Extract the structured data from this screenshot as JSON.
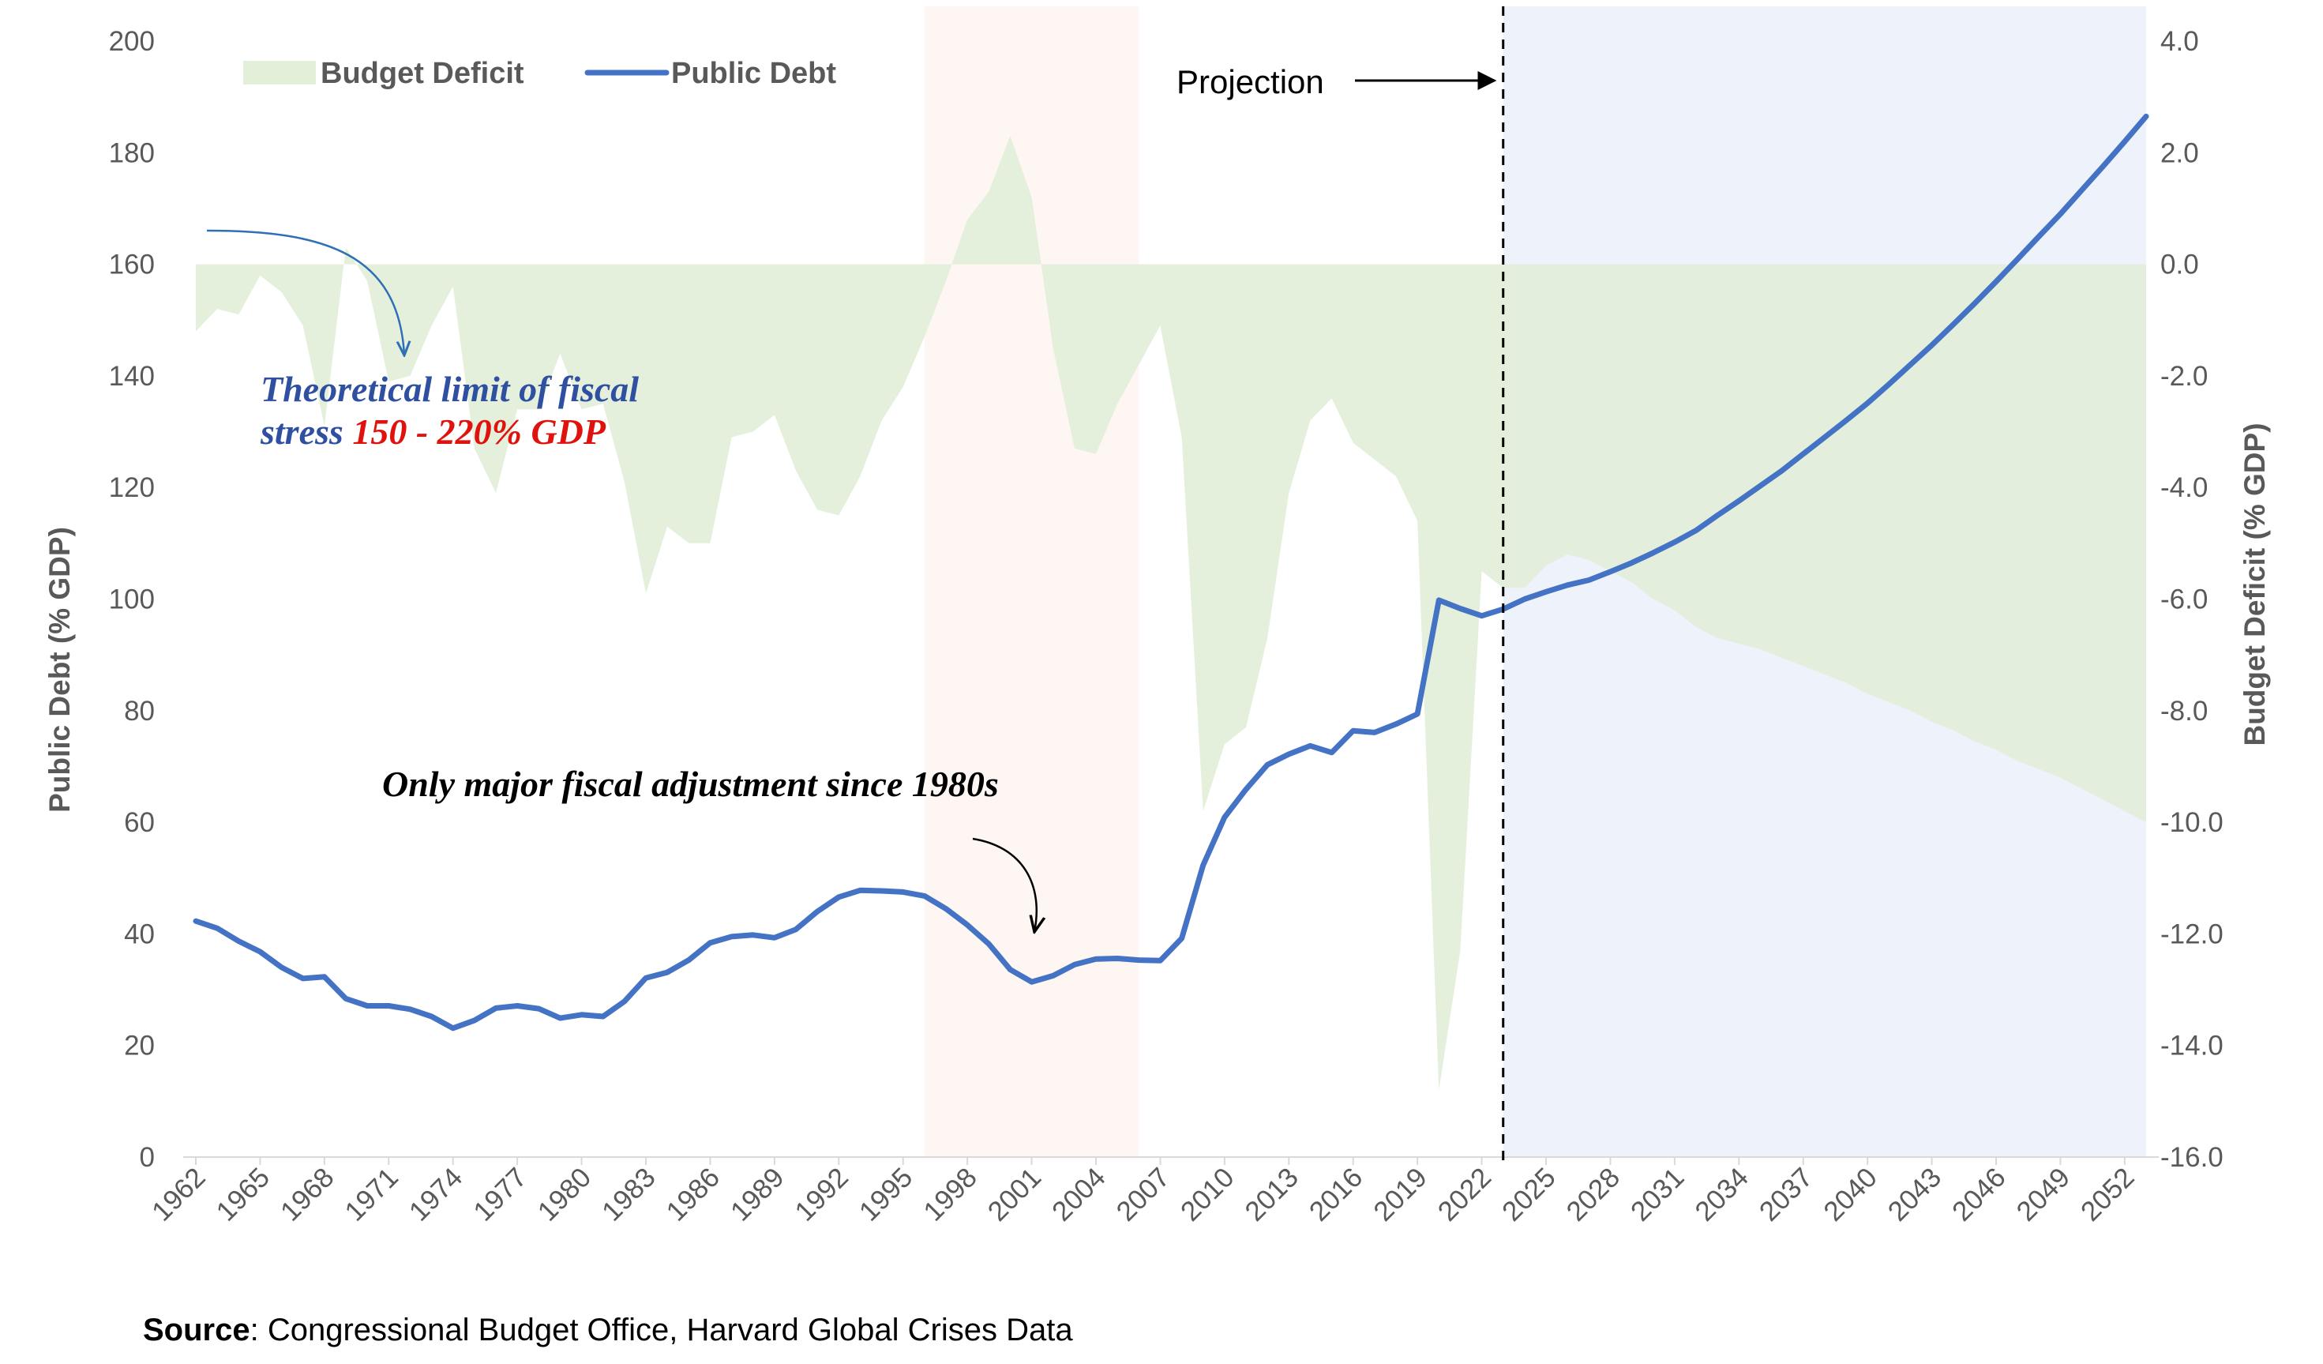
{
  "chart_data": {
    "type": "line",
    "title": "",
    "ylabel_left": "Public Debt (% GDP)",
    "ylabel_right": "Budget Deficit (% GDP)",
    "ylim_left": [
      0,
      200
    ],
    "ylim_right": [
      -16.0,
      4.0
    ],
    "yticks_left": [
      "0",
      "20",
      "40",
      "60",
      "80",
      "100",
      "120",
      "140",
      "160",
      "180",
      "200"
    ],
    "yticks_right": [
      "-16.0",
      "-14.0",
      "-12.0",
      "-10.0",
      "-8.0",
      "-6.0",
      "-4.0",
      "-2.0",
      "0.0",
      "2.0",
      "4.0"
    ],
    "xlim": [
      1962,
      2053
    ],
    "xticks": [
      "1962",
      "1965",
      "1968",
      "1971",
      "1974",
      "1977",
      "1980",
      "1983",
      "1986",
      "1989",
      "1992",
      "1995",
      "1998",
      "2001",
      "2004",
      "2007",
      "2010",
      "2013",
      "2016",
      "2019",
      "2022",
      "2025",
      "2028",
      "2031",
      "2034",
      "2037",
      "2040",
      "2043",
      "2046",
      "2049",
      "2052"
    ],
    "legend": {
      "position": "top-left",
      "entries": [
        "Budget Deficit",
        "Public Debt"
      ]
    },
    "colors": {
      "deficit_fill": "#E2EFD9",
      "debt_line": "#4472C4",
      "highlight_band": "#FDF6F2",
      "projection_band": "#EEF3FB"
    },
    "highlight_band_years": [
      1996,
      2006
    ],
    "projection_start_year": 2023,
    "series": [
      {
        "name": "Public Debt",
        "axis": "left",
        "style": "line",
        "points": [
          [
            1962,
            42.3
          ],
          [
            1963,
            41.0
          ],
          [
            1964,
            38.7
          ],
          [
            1965,
            36.8
          ],
          [
            1966,
            34.0
          ],
          [
            1967,
            32.0
          ],
          [
            1968,
            32.3
          ],
          [
            1969,
            28.4
          ],
          [
            1970,
            27.1
          ],
          [
            1971,
            27.1
          ],
          [
            1972,
            26.5
          ],
          [
            1973,
            25.2
          ],
          [
            1974,
            23.1
          ],
          [
            1975,
            24.5
          ],
          [
            1976,
            26.7
          ],
          [
            1977,
            27.1
          ],
          [
            1978,
            26.6
          ],
          [
            1979,
            24.9
          ],
          [
            1980,
            25.5
          ],
          [
            1981,
            25.2
          ],
          [
            1982,
            27.9
          ],
          [
            1983,
            32.1
          ],
          [
            1984,
            33.1
          ],
          [
            1985,
            35.3
          ],
          [
            1986,
            38.4
          ],
          [
            1987,
            39.5
          ],
          [
            1988,
            39.8
          ],
          [
            1989,
            39.3
          ],
          [
            1990,
            40.8
          ],
          [
            1991,
            44.0
          ],
          [
            1992,
            46.6
          ],
          [
            1993,
            47.8
          ],
          [
            1994,
            47.7
          ],
          [
            1995,
            47.5
          ],
          [
            1996,
            46.8
          ],
          [
            1997,
            44.5
          ],
          [
            1998,
            41.6
          ],
          [
            1999,
            38.2
          ],
          [
            2000,
            33.6
          ],
          [
            2001,
            31.4
          ],
          [
            2002,
            32.5
          ],
          [
            2003,
            34.5
          ],
          [
            2004,
            35.5
          ],
          [
            2005,
            35.6
          ],
          [
            2006,
            35.3
          ],
          [
            2007,
            35.2
          ],
          [
            2008,
            39.2
          ],
          [
            2009,
            52.3
          ],
          [
            2010,
            60.9
          ],
          [
            2011,
            65.9
          ],
          [
            2012,
            70.3
          ],
          [
            2013,
            72.2
          ],
          [
            2014,
            73.7
          ],
          [
            2015,
            72.5
          ],
          [
            2016,
            76.4
          ],
          [
            2017,
            76.1
          ],
          [
            2018,
            77.6
          ],
          [
            2019,
            79.4
          ],
          [
            2020,
            99.8
          ],
          [
            2021,
            98.3
          ],
          [
            2022,
            97.0
          ],
          [
            2023,
            98.2
          ],
          [
            2024,
            100.0
          ],
          [
            2025,
            101.3
          ],
          [
            2026,
            102.5
          ],
          [
            2027,
            103.4
          ],
          [
            2028,
            104.9
          ],
          [
            2029,
            106.5
          ],
          [
            2030,
            108.3
          ],
          [
            2031,
            110.2
          ],
          [
            2032,
            112.3
          ],
          [
            2033,
            115.0
          ],
          [
            2034,
            117.6
          ],
          [
            2035,
            120.3
          ],
          [
            2036,
            123.0
          ],
          [
            2037,
            126.0
          ],
          [
            2038,
            129.0
          ],
          [
            2039,
            132.0
          ],
          [
            2040,
            135.1
          ],
          [
            2041,
            138.5
          ],
          [
            2042,
            142.0
          ],
          [
            2043,
            145.5
          ],
          [
            2044,
            149.2
          ],
          [
            2045,
            153.0
          ],
          [
            2046,
            156.9
          ],
          [
            2047,
            160.9
          ],
          [
            2048,
            165.0
          ],
          [
            2049,
            169.0
          ],
          [
            2050,
            173.3
          ],
          [
            2051,
            177.6
          ],
          [
            2052,
            182.0
          ],
          [
            2053,
            186.5
          ]
        ]
      },
      {
        "name": "Budget Deficit",
        "axis": "right",
        "style": "area",
        "points": [
          [
            1962,
            -1.2
          ],
          [
            1963,
            -0.8
          ],
          [
            1964,
            -0.9
          ],
          [
            1965,
            -0.2
          ],
          [
            1966,
            -0.5
          ],
          [
            1967,
            -1.1
          ],
          [
            1968,
            -2.9
          ],
          [
            1969,
            0.3
          ],
          [
            1970,
            -0.3
          ],
          [
            1971,
            -2.1
          ],
          [
            1972,
            -2.0
          ],
          [
            1973,
            -1.1
          ],
          [
            1974,
            -0.4
          ],
          [
            1975,
            -3.3
          ],
          [
            1976,
            -4.1
          ],
          [
            1977,
            -2.6
          ],
          [
            1978,
            -2.6
          ],
          [
            1979,
            -1.6
          ],
          [
            1980,
            -2.6
          ],
          [
            1981,
            -2.5
          ],
          [
            1982,
            -3.9
          ],
          [
            1983,
            -5.9
          ],
          [
            1984,
            -4.7
          ],
          [
            1985,
            -5.0
          ],
          [
            1986,
            -5.0
          ],
          [
            1987,
            -3.1
          ],
          [
            1988,
            -3.0
          ],
          [
            1989,
            -2.7
          ],
          [
            1990,
            -3.7
          ],
          [
            1991,
            -4.4
          ],
          [
            1992,
            -4.5
          ],
          [
            1993,
            -3.8
          ],
          [
            1994,
            -2.8
          ],
          [
            1995,
            -2.2
          ],
          [
            1996,
            -1.3
          ],
          [
            1997,
            -0.3
          ],
          [
            1998,
            0.8
          ],
          [
            1999,
            1.3
          ],
          [
            2000,
            2.3
          ],
          [
            2001,
            1.2
          ],
          [
            2002,
            -1.5
          ],
          [
            2003,
            -3.3
          ],
          [
            2004,
            -3.4
          ],
          [
            2005,
            -2.5
          ],
          [
            2006,
            -1.8
          ],
          [
            2007,
            -1.1
          ],
          [
            2008,
            -3.1
          ],
          [
            2009,
            -9.8
          ],
          [
            2010,
            -8.6
          ],
          [
            2011,
            -8.3
          ],
          [
            2012,
            -6.7
          ],
          [
            2013,
            -4.1
          ],
          [
            2014,
            -2.8
          ],
          [
            2015,
            -2.4
          ],
          [
            2016,
            -3.2
          ],
          [
            2017,
            -3.5
          ],
          [
            2018,
            -3.8
          ],
          [
            2019,
            -4.6
          ],
          [
            2020,
            -14.8
          ],
          [
            2021,
            -12.3
          ],
          [
            2022,
            -5.5
          ],
          [
            2023,
            -5.8
          ],
          [
            2024,
            -5.8
          ],
          [
            2025,
            -5.4
          ],
          [
            2026,
            -5.2
          ],
          [
            2027,
            -5.3
          ],
          [
            2028,
            -5.5
          ],
          [
            2029,
            -5.7
          ],
          [
            2030,
            -6.0
          ],
          [
            2031,
            -6.2
          ],
          [
            2032,
            -6.5
          ],
          [
            2033,
            -6.7
          ],
          [
            2034,
            -6.8
          ],
          [
            2035,
            -6.9
          ],
          [
            2036,
            -7.05
          ],
          [
            2037,
            -7.2
          ],
          [
            2038,
            -7.35
          ],
          [
            2039,
            -7.5
          ],
          [
            2040,
            -7.7
          ],
          [
            2041,
            -7.85
          ],
          [
            2042,
            -8.0
          ],
          [
            2043,
            -8.2
          ],
          [
            2044,
            -8.35
          ],
          [
            2045,
            -8.55
          ],
          [
            2046,
            -8.7
          ],
          [
            2047,
            -8.9
          ],
          [
            2048,
            -9.05
          ],
          [
            2049,
            -9.2
          ],
          [
            2050,
            -9.4
          ],
          [
            2051,
            -9.6
          ],
          [
            2052,
            -9.8
          ],
          [
            2053,
            -10.0
          ]
        ]
      }
    ],
    "annotations": {
      "projection": "Projection",
      "fiscal_stress_line1": "Theoretical limit of fiscal",
      "fiscal_stress_line2_prefix": "stress ",
      "fiscal_stress_line2_highlight": "150 - 220% GDP",
      "adjustment": "Only major fiscal adjustment since 1980s"
    },
    "source_label": "Source",
    "source_text": ": Congressional Budget Office, Harvard Global Crises Data"
  }
}
